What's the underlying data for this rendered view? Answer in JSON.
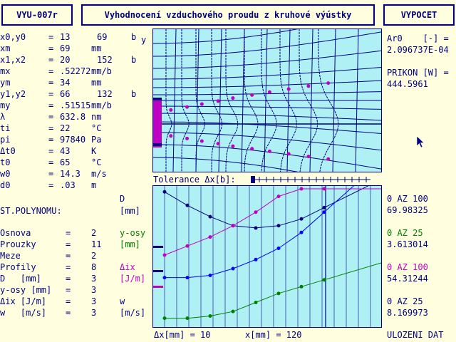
{
  "header": {
    "program_id": "VYU-007r",
    "title": "Vyhodnocení vzduchového proudu z kruhové výústky",
    "calc_button": "VYPOCET"
  },
  "params": [
    {
      "name": "x0,y0",
      "eq": "=",
      "v1": "13",
      "v2": "69",
      "unit": "b"
    },
    {
      "name": "xm",
      "eq": "=",
      "v1": "69",
      "v2": "",
      "unit": "mm"
    },
    {
      "name": "x1,x2",
      "eq": "=",
      "v1": "20",
      "v2": "152",
      "unit": "b"
    },
    {
      "name": "mx",
      "eq": "=",
      "v1": ".52272",
      "v2": "",
      "unit": "mm/b"
    },
    {
      "name": "ym",
      "eq": "=",
      "v1": "34",
      "v2": "",
      "unit": "mm"
    },
    {
      "name": "y1,y2",
      "eq": "=",
      "v1": "66",
      "v2": "132",
      "unit": "b"
    },
    {
      "name": "my",
      "eq": "=",
      "v1": ".51515",
      "v2": "",
      "unit": "mm/b"
    },
    {
      "name": "λ",
      "eq": "=",
      "v1": "632.8",
      "v2": "",
      "unit": "nm"
    },
    {
      "name": "ti",
      "eq": "=",
      "v1": "22",
      "v2": "",
      "unit": "°C"
    },
    {
      "name": "pi",
      "eq": "=",
      "v1": "97840",
      "v2": "",
      "unit": "Pa"
    },
    {
      "name": "Δt0",
      "eq": "=",
      "v1": "43",
      "v2": "",
      "unit": "K"
    },
    {
      "name": "t0",
      "eq": "=",
      "v1": "65",
      "v2": "",
      "unit": "°C"
    },
    {
      "name": "w0",
      "eq": "=",
      "v1": "14.3",
      "v2": "",
      "unit": "m/s"
    },
    {
      "name": "d0",
      "eq": "=",
      "v1": ".03",
      "v2": "",
      "unit": "m"
    }
  ],
  "polynom": {
    "heading": "ST.POLYNOMU:",
    "rows": [
      {
        "name": "Osnova",
        "eq": "=",
        "val": "2"
      },
      {
        "name": "Prouzky",
        "eq": "=",
        "val": "11"
      },
      {
        "name": "Meze",
        "eq": "=",
        "val": "2"
      },
      {
        "name": "Profily",
        "eq": "=",
        "val": "8"
      },
      {
        "name": "D   [mm]",
        "eq": "=",
        "val": "3"
      },
      {
        "name": "y-osy [mm]",
        "eq": "=",
        "val": "3"
      },
      {
        "name": "Δix [J/m]",
        "eq": "=",
        "val": "3"
      },
      {
        "name": "w   [m/s]",
        "eq": "=",
        "val": "3"
      }
    ]
  },
  "axis_labels": {
    "y": "y",
    "d_name": "D",
    "d_unit": "[mm]",
    "yosy_name": "y-osy",
    "yosy_unit": "[mm]",
    "ix_name": "Δix",
    "ix_unit": "[J/m]",
    "w_name": "w",
    "w_unit": "[m/s]"
  },
  "tolerance_label": "Tolerance Δx[b]:",
  "bottom": {
    "dx": "Δx[mm] = 10",
    "x": "x[mm] = 120",
    "save": "ULOZENI DAT"
  },
  "results": {
    "ar0_label": "Ar0    [-] =",
    "ar0_value": "2.096737E-04",
    "prikon_label": "PRIKON [W] =",
    "prikon_value": "444.5961",
    "d_range": "0 AZ 100",
    "d_value": "69.98325",
    "yosy_range": "0 AZ 25",
    "yosy_value": "3.613014",
    "ix_range": "0 AZ 100",
    "ix_value": "54.31244",
    "w_range": "0 AZ 25",
    "w_value": "8.169973"
  },
  "colors": {
    "navy": "#000080",
    "panel": "#aff0f4",
    "background": "#ffffe0",
    "green": "#008000",
    "magenta": "#c000c0",
    "blue": "#0000ff"
  },
  "icons": [
    "mouse-pointer-icon"
  ],
  "chart_data": [
    {
      "type": "line",
      "x": [
        1,
        2,
        3,
        4,
        5,
        6,
        7,
        8
      ],
      "series": [
        {
          "values": [
            58,
            52,
            47,
            43,
            42,
            43,
            46,
            51
          ]
        },
        {
          "values": [
            30,
            34,
            38,
            43,
            49,
            56,
            64,
            72
          ]
        },
        {
          "values": [
            20,
            20,
            21,
            24,
            28,
            33,
            40,
            49
          ]
        },
        {
          "values": [
            2,
            2,
            3,
            5,
            9,
            13,
            16,
            19
          ]
        }
      ]
    }
  ]
}
